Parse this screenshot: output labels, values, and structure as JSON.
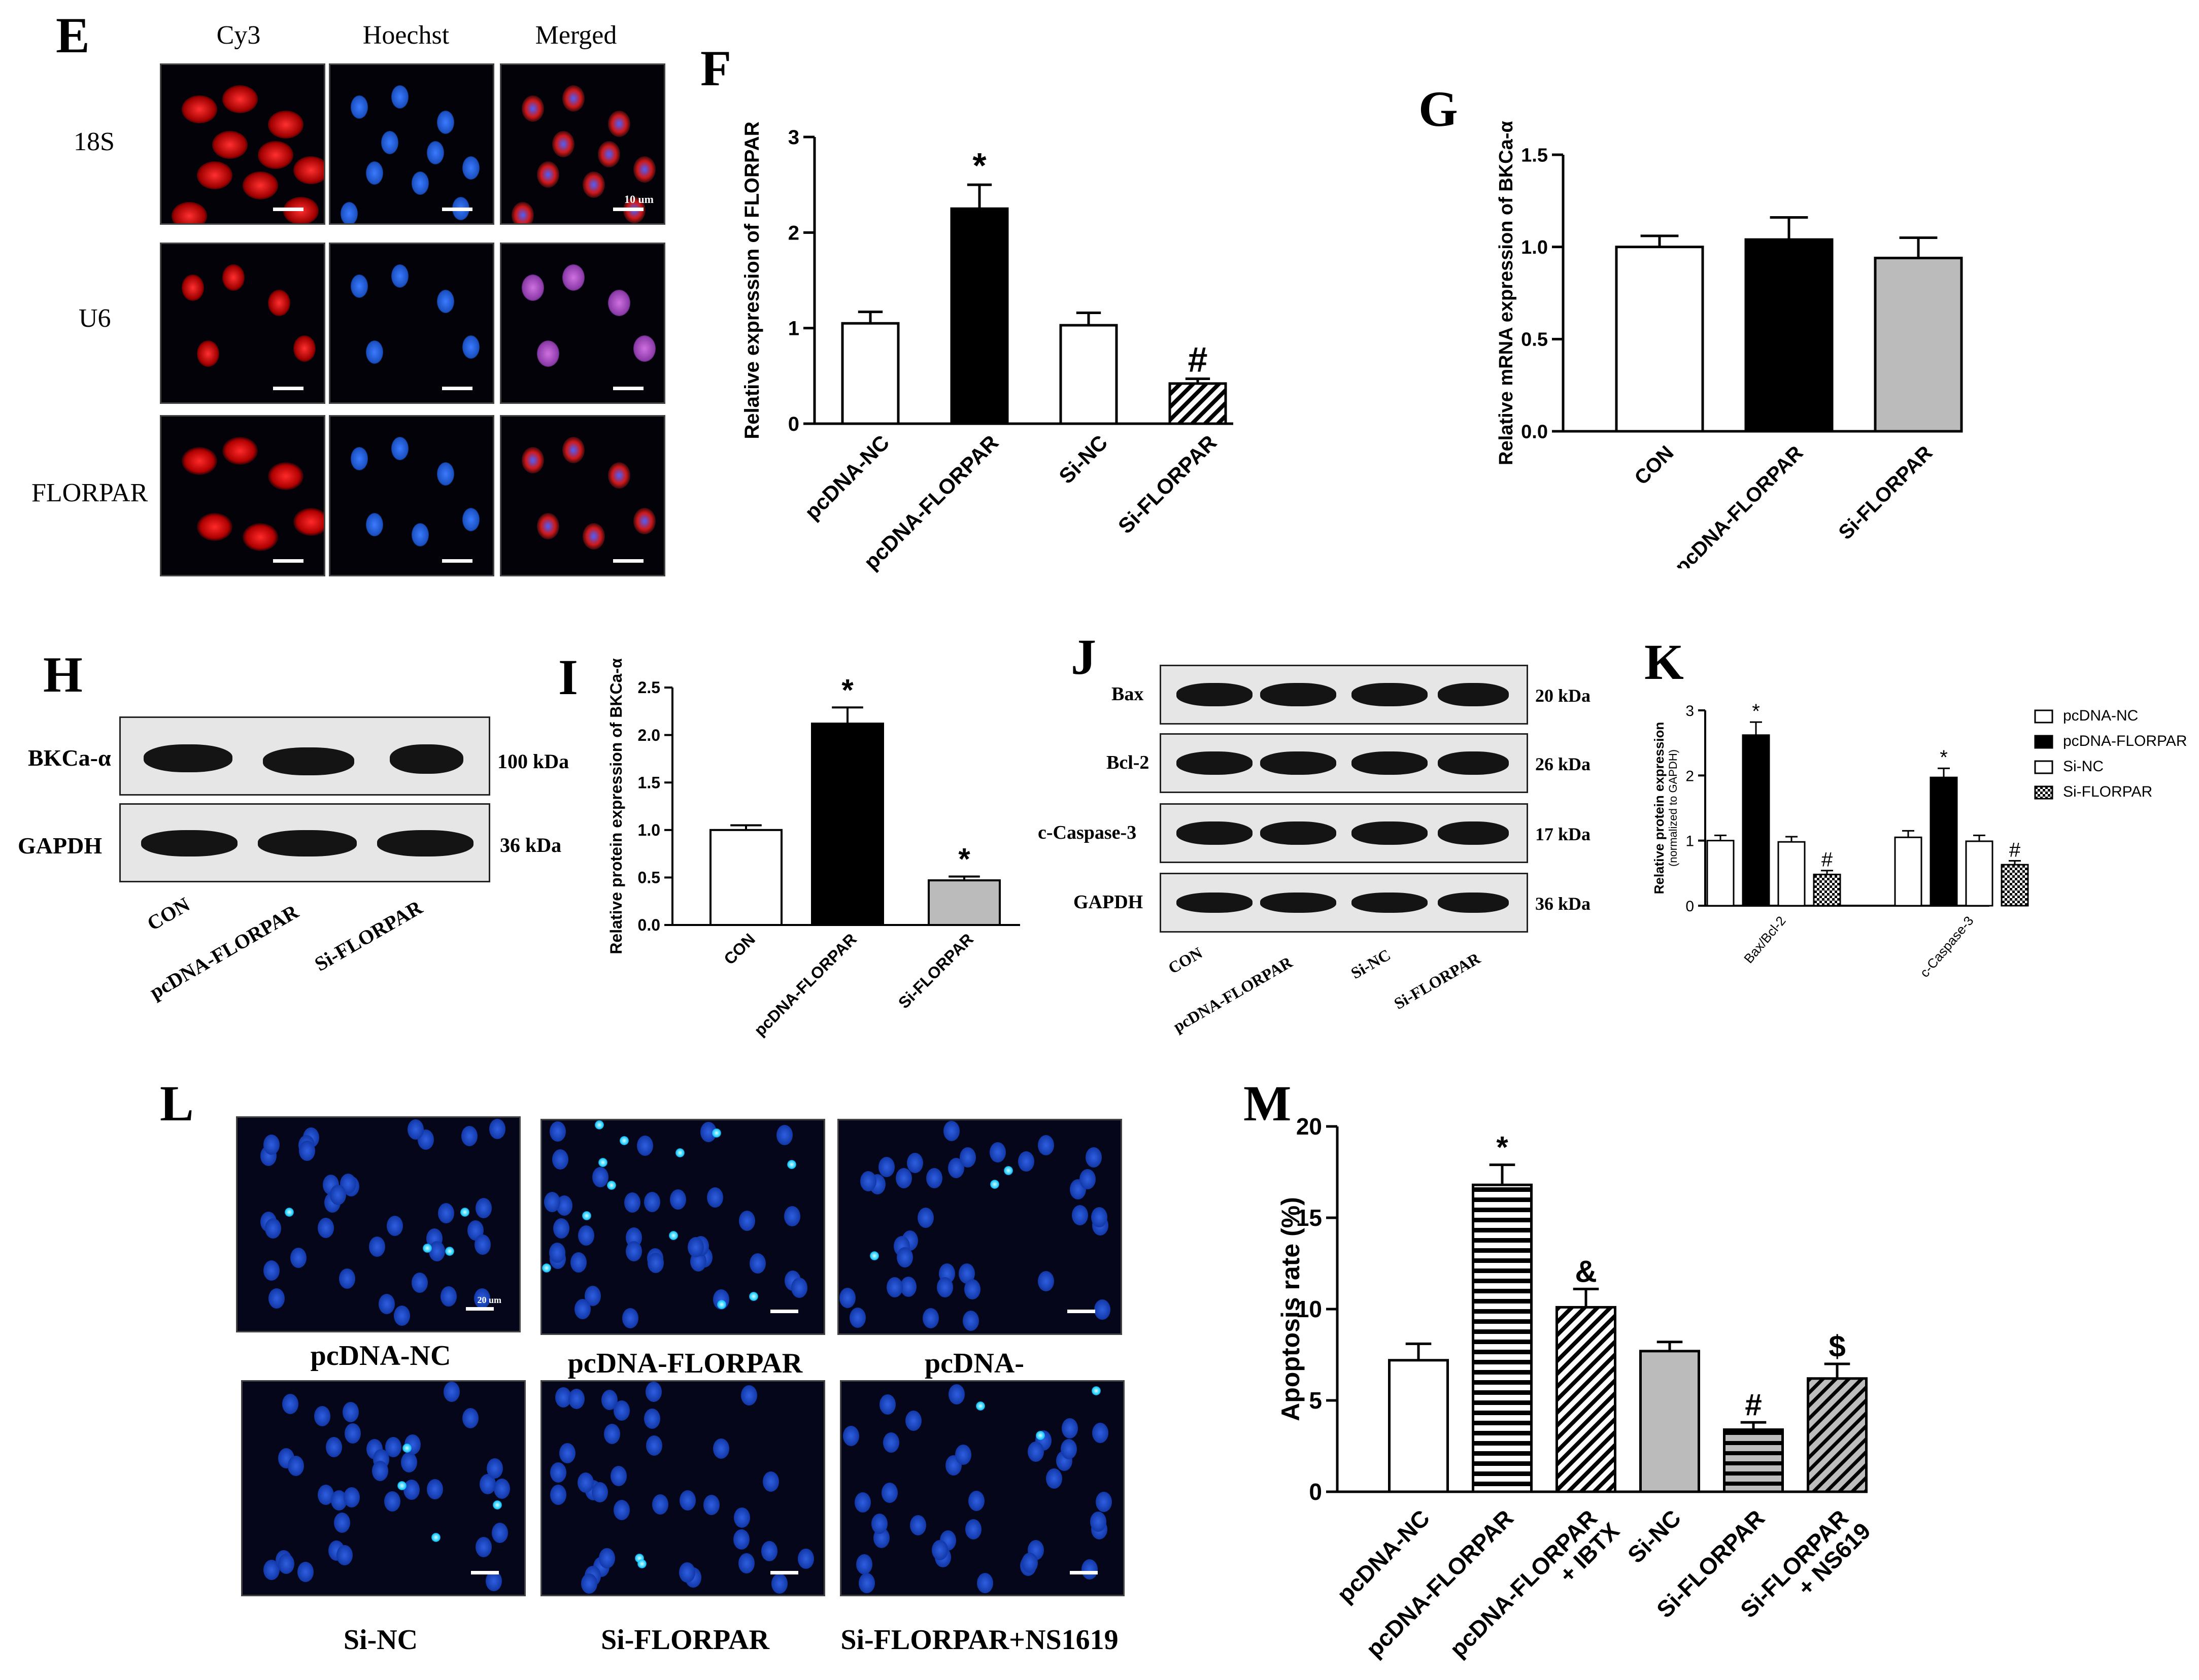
{
  "panels": {
    "E": {
      "letter": "E",
      "columns": [
        "Cy3",
        "Hoechst",
        "Merged"
      ],
      "rows": [
        "18S",
        "U6",
        "FLORPAR"
      ],
      "scalebar_label": "10 um"
    },
    "H": {
      "letter": "H",
      "bands": [
        {
          "label": "BKCa-α",
          "kda": "100 kDa"
        },
        {
          "label": "GAPDH",
          "kda": "36 kDa"
        }
      ],
      "lanes": [
        "CON",
        "pcDNA-FLORPAR",
        "Si-FLORPAR"
      ]
    },
    "J": {
      "letter": "J",
      "bands": [
        {
          "label": "Bax",
          "kda": "20 kDa"
        },
        {
          "label": "Bcl-2",
          "kda": "26 kDa"
        },
        {
          "label": "c-Caspase-3",
          "kda": "17 kDa"
        },
        {
          "label": "GAPDH",
          "kda": "36 kDa"
        }
      ],
      "lanes": [
        "CON",
        "pcDNA-FLORPAR",
        "Si-NC",
        "Si-FLORPAR"
      ]
    },
    "L": {
      "letter": "L",
      "captions": [
        "pcDNA-NC",
        "pcDNA-FLORPAR",
        "pcDNA-FLORPAR+IBTX",
        "Si-NC",
        "Si-FLORPAR",
        "Si-FLORPAR+NS1619"
      ],
      "scalebar_label": "20 um"
    }
  },
  "chart_data": [
    {
      "id": "F",
      "letter": "F",
      "type": "bar",
      "ylabel": "Relative expression of FLORPAR",
      "ylim": [
        0,
        3
      ],
      "yticks": [
        "0",
        "1",
        "2",
        "3"
      ],
      "categories": [
        "pcDNA-NC",
        "pcDNA-FLORPAR",
        "Si-NC",
        "Si-FLORPAR"
      ],
      "values": [
        1.05,
        2.25,
        1.03,
        0.42
      ],
      "errors": [
        0.12,
        0.25,
        0.13,
        0.05
      ],
      "fills": [
        "white",
        "black",
        "white",
        "diagonal-hatch"
      ],
      "annotations": [
        "",
        "*",
        "",
        "#"
      ]
    },
    {
      "id": "G",
      "letter": "G",
      "type": "bar",
      "ylabel": "Relative mRNA expression of BKCa-α",
      "ylim": [
        0,
        1.5
      ],
      "yticks": [
        "0.0",
        "0.5",
        "1.0",
        "1.5"
      ],
      "categories": [
        "CON",
        "pcDNA-FLORPAR",
        "Si-FLORPAR"
      ],
      "values": [
        1.0,
        1.04,
        0.94
      ],
      "errors": [
        0.06,
        0.12,
        0.11
      ],
      "fills": [
        "white",
        "black",
        "#bbbbbb"
      ],
      "annotations": [
        "",
        "",
        ""
      ]
    },
    {
      "id": "I",
      "letter": "I",
      "type": "bar",
      "ylabel": "Relative protein expression of BKCa-α",
      "ylim": [
        0,
        2.5
      ],
      "yticks": [
        "0.0",
        "0.5",
        "1.0",
        "1.5",
        "2.0",
        "2.5"
      ],
      "categories": [
        "CON",
        "pcDNA-FLORPAR",
        "Si-FLORPAR"
      ],
      "values": [
        1.0,
        2.12,
        0.47
      ],
      "errors": [
        0.05,
        0.17,
        0.04
      ],
      "fills": [
        "white",
        "black",
        "#bbbbbb"
      ],
      "annotations": [
        "",
        "*",
        "*"
      ]
    },
    {
      "id": "K",
      "letter": "K",
      "type": "bar",
      "ylabel": "Relative protein expression",
      "ylabel2": "(normalized to GAPDH)",
      "ylim": [
        0,
        3
      ],
      "yticks": [
        "0",
        "1",
        "2",
        "3"
      ],
      "categories": [
        "Bax/Bcl-2",
        "c-Caspase-3"
      ],
      "series": [
        {
          "name": "pcDNA-NC",
          "values": [
            1.0,
            1.05
          ],
          "errors": [
            0.08,
            0.1
          ],
          "fill": "white",
          "annotations": [
            "",
            ""
          ]
        },
        {
          "name": "pcDNA-FLORPAR",
          "values": [
            2.62,
            1.97
          ],
          "errors": [
            0.2,
            0.14
          ],
          "fill": "black",
          "annotations": [
            "*",
            "*"
          ]
        },
        {
          "name": "Si-NC",
          "values": [
            0.98,
            0.99
          ],
          "errors": [
            0.08,
            0.09
          ],
          "fill": "white",
          "annotations": [
            "",
            ""
          ]
        },
        {
          "name": "Si-FLORPAR",
          "values": [
            0.48,
            0.63
          ],
          "errors": [
            0.06,
            0.06
          ],
          "fill": "checker",
          "annotations": [
            "#",
            "#"
          ]
        }
      ],
      "legend": "right"
    },
    {
      "id": "M",
      "letter": "M",
      "type": "bar",
      "ylabel": "Apoptosis rate (%)",
      "ylim": [
        0,
        20
      ],
      "yticks": [
        "0",
        "5",
        "10",
        "15",
        "20"
      ],
      "categories": [
        "pcDNA-NC",
        "pcDNA-FLORPAR",
        "pcDNA-FLORPAR\n+ IBTX",
        "Si-NC",
        "Si-FLORPAR",
        "Si-FLORPAR\n+ NS619"
      ],
      "values": [
        7.2,
        16.8,
        10.1,
        7.7,
        3.4,
        6.2
      ],
      "errors": [
        0.9,
        1.1,
        1.0,
        0.5,
        0.4,
        0.8
      ],
      "fills": [
        "white",
        "horizontal-lines",
        "diagonal-hatch",
        "#bbbbbb",
        "horizontal-lines-gray",
        "diagonal-hatch-gray"
      ],
      "annotations": [
        "",
        "*",
        "&",
        "",
        "#",
        "$"
      ]
    }
  ]
}
